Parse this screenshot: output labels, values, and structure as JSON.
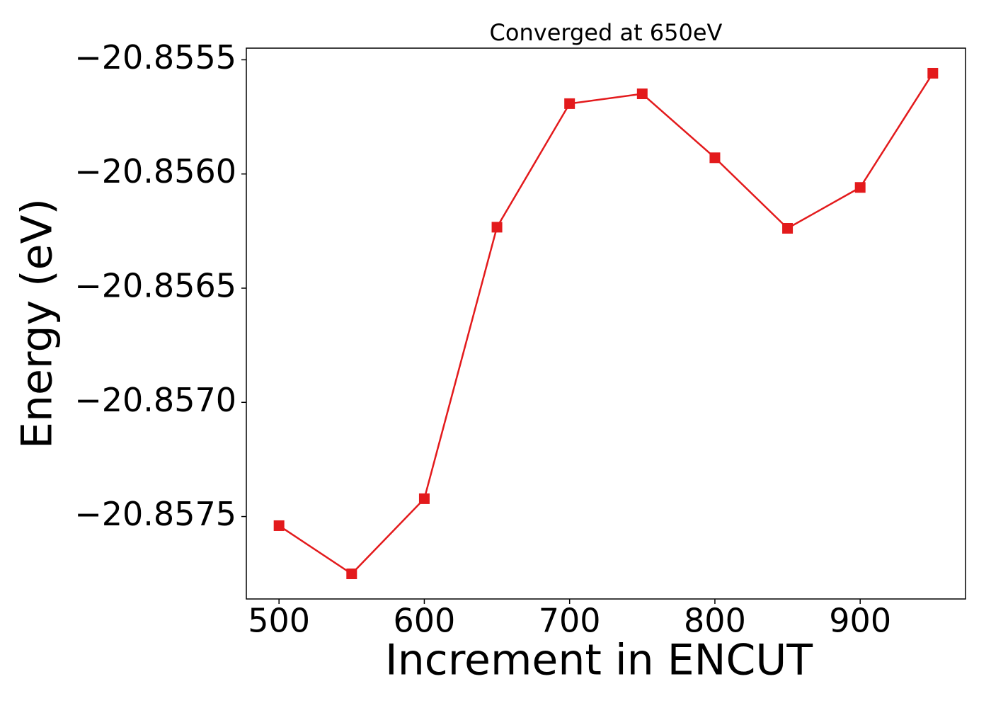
{
  "chart_data": {
    "type": "line",
    "title": "Converged at 650eV",
    "x_label": "Increment in ENCUT",
    "y_label": "Energy (eV)",
    "x": [
      500,
      550,
      600,
      650,
      700,
      750,
      800,
      850,
      900,
      950
    ],
    "values": [
      -20.85754,
      -20.857751,
      -20.857422,
      -20.856233,
      -20.855692,
      -20.855649,
      -20.855929,
      -20.856238,
      -20.856059,
      -20.855559
    ],
    "color": "#e31a1c",
    "marker": "square",
    "xlim": [
      477.5,
      972.5
    ],
    "xticks": [
      500,
      600,
      700,
      800,
      900
    ],
    "ylim": [
      -20.857861,
      -20.855449
    ],
    "yticks": [
      {
        "value": -20.8575,
        "label": "−20.8575"
      },
      {
        "value": -20.857,
        "label": "−20.8570"
      },
      {
        "value": -20.8565,
        "label": "−20.8565"
      },
      {
        "value": -20.856,
        "label": "−20.8560"
      },
      {
        "value": -20.8555,
        "label": "−20.8555"
      }
    ],
    "grid": false
  }
}
